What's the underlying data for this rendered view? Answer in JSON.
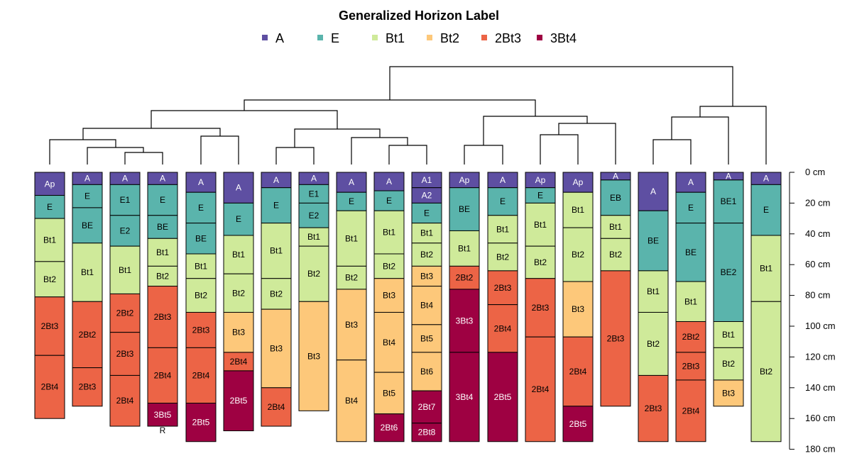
{
  "chart_data": {
    "type": "soil-profile-dendrogram",
    "title": "Generalized Horizon Label",
    "legend": [
      {
        "label": "A",
        "color": "#5E4FA2"
      },
      {
        "label": "E",
        "color": "#5AB4AC"
      },
      {
        "label": "Bt1",
        "color": "#CFEA9A"
      },
      {
        "label": "Bt2",
        "color": "#FDC87A"
      },
      {
        "label": "2Bt3",
        "color": "#EC6446"
      },
      {
        "label": "3Bt4",
        "color": "#9E0142"
      }
    ],
    "depth_axis": {
      "unit": "cm",
      "ticks": [
        {
          "value": 0,
          "label": "0 cm"
        },
        {
          "value": 20,
          "label": "20 cm"
        },
        {
          "value": 40,
          "label": "40 cm"
        },
        {
          "value": 60,
          "label": "60 cm"
        },
        {
          "value": 80,
          "label": "80 cm"
        },
        {
          "value": 100,
          "label": "100 cm"
        },
        {
          "value": 120,
          "label": "120 cm"
        },
        {
          "value": 140,
          "label": "140 cm"
        },
        {
          "value": 160,
          "label": "160 cm"
        },
        {
          "value": 180,
          "label": "180 cm"
        }
      ],
      "range": [
        0,
        180
      ]
    },
    "profiles": [
      {
        "horizons": [
          {
            "name": "Ap",
            "top": 0,
            "bottom": 15,
            "group": "A"
          },
          {
            "name": "E",
            "top": 15,
            "bottom": 30,
            "group": "E"
          },
          {
            "name": "Bt1",
            "top": 30,
            "bottom": 58,
            "group": "Bt1"
          },
          {
            "name": "Bt2",
            "top": 58,
            "bottom": 81,
            "group": "Bt1"
          },
          {
            "name": "2Bt3",
            "top": 81,
            "bottom": 119,
            "group": "2Bt3"
          },
          {
            "name": "2Bt4",
            "top": 119,
            "bottom": 160,
            "group": "2Bt3"
          }
        ]
      },
      {
        "horizons": [
          {
            "name": "A",
            "top": 0,
            "bottom": 8,
            "group": "A"
          },
          {
            "name": "E",
            "top": 8,
            "bottom": 23,
            "group": "E"
          },
          {
            "name": "BE",
            "top": 23,
            "bottom": 46,
            "group": "E"
          },
          {
            "name": "Bt1",
            "top": 46,
            "bottom": 84,
            "group": "Bt1"
          },
          {
            "name": "2Bt2",
            "top": 84,
            "bottom": 127,
            "group": "2Bt3"
          },
          {
            "name": "2Bt3",
            "top": 127,
            "bottom": 152,
            "group": "2Bt3"
          }
        ]
      },
      {
        "horizons": [
          {
            "name": "A",
            "top": 0,
            "bottom": 8,
            "group": "A"
          },
          {
            "name": "E1",
            "top": 8,
            "bottom": 28,
            "group": "E"
          },
          {
            "name": "E2",
            "top": 28,
            "bottom": 48,
            "group": "E"
          },
          {
            "name": "Bt1",
            "top": 48,
            "bottom": 79,
            "group": "Bt1"
          },
          {
            "name": "2Bt2",
            "top": 79,
            "bottom": 104,
            "group": "2Bt3"
          },
          {
            "name": "2Bt3",
            "top": 104,
            "bottom": 132,
            "group": "2Bt3"
          },
          {
            "name": "2Bt4",
            "top": 132,
            "bottom": 165,
            "group": "2Bt3"
          }
        ]
      },
      {
        "horizons": [
          {
            "name": "A",
            "top": 0,
            "bottom": 8,
            "group": "A"
          },
          {
            "name": "E",
            "top": 8,
            "bottom": 28,
            "group": "E"
          },
          {
            "name": "BE",
            "top": 28,
            "bottom": 43,
            "group": "E"
          },
          {
            "name": "Bt1",
            "top": 43,
            "bottom": 61,
            "group": "Bt1"
          },
          {
            "name": "Bt2",
            "top": 61,
            "bottom": 74,
            "group": "Bt1"
          },
          {
            "name": "2Bt3",
            "top": 74,
            "bottom": 114,
            "group": "2Bt3"
          },
          {
            "name": "2Bt4",
            "top": 114,
            "bottom": 150,
            "group": "2Bt3"
          },
          {
            "name": "3Bt5",
            "top": 150,
            "bottom": 165,
            "group": "3Bt4"
          },
          {
            "name": "R",
            "top": 165,
            "bottom": 166,
            "group": "none"
          }
        ]
      },
      {
        "horizons": [
          {
            "name": "A",
            "top": 0,
            "bottom": 13,
            "group": "A"
          },
          {
            "name": "E",
            "top": 13,
            "bottom": 33,
            "group": "E"
          },
          {
            "name": "BE",
            "top": 33,
            "bottom": 53,
            "group": "E"
          },
          {
            "name": "Bt1",
            "top": 53,
            "bottom": 69,
            "group": "Bt1"
          },
          {
            "name": "Bt2",
            "top": 69,
            "bottom": 91,
            "group": "Bt1"
          },
          {
            "name": "2Bt3",
            "top": 91,
            "bottom": 114,
            "group": "2Bt3"
          },
          {
            "name": "2Bt4",
            "top": 114,
            "bottom": 150,
            "group": "2Bt3"
          },
          {
            "name": "2Bt5",
            "top": 150,
            "bottom": 175,
            "group": "3Bt4"
          }
        ]
      },
      {
        "horizons": [
          {
            "name": "A",
            "top": 0,
            "bottom": 20,
            "group": "A"
          },
          {
            "name": "E",
            "top": 20,
            "bottom": 41,
            "group": "E"
          },
          {
            "name": "Bt1",
            "top": 41,
            "bottom": 66,
            "group": "Bt1"
          },
          {
            "name": "Bt2",
            "top": 66,
            "bottom": 91,
            "group": "Bt1"
          },
          {
            "name": "Bt3",
            "top": 91,
            "bottom": 117,
            "group": "Bt2"
          },
          {
            "name": "2Bt4",
            "top": 117,
            "bottom": 129,
            "group": "2Bt3"
          },
          {
            "name": "2Bt5",
            "top": 129,
            "bottom": 168,
            "group": "3Bt4"
          }
        ]
      },
      {
        "horizons": [
          {
            "name": "A",
            "top": 0,
            "bottom": 10,
            "group": "A"
          },
          {
            "name": "E",
            "top": 10,
            "bottom": 33,
            "group": "E"
          },
          {
            "name": "Bt1",
            "top": 33,
            "bottom": 69,
            "group": "Bt1"
          },
          {
            "name": "Bt2",
            "top": 69,
            "bottom": 89,
            "group": "Bt1"
          },
          {
            "name": "Bt3",
            "top": 89,
            "bottom": 140,
            "group": "Bt2"
          },
          {
            "name": "2Bt4",
            "top": 140,
            "bottom": 165,
            "group": "2Bt3"
          }
        ]
      },
      {
        "horizons": [
          {
            "name": "A",
            "top": 0,
            "bottom": 8,
            "group": "A"
          },
          {
            "name": "E1",
            "top": 8,
            "bottom": 20,
            "group": "E"
          },
          {
            "name": "E2",
            "top": 20,
            "bottom": 36,
            "group": "E"
          },
          {
            "name": "Bt1",
            "top": 36,
            "bottom": 48,
            "group": "Bt1"
          },
          {
            "name": "Bt2",
            "top": 48,
            "bottom": 84,
            "group": "Bt1"
          },
          {
            "name": "Bt3",
            "top": 84,
            "bottom": 155,
            "group": "Bt2"
          }
        ]
      },
      {
        "horizons": [
          {
            "name": "A",
            "top": 0,
            "bottom": 13,
            "group": "A"
          },
          {
            "name": "E",
            "top": 13,
            "bottom": 25,
            "group": "E"
          },
          {
            "name": "Bt1",
            "top": 25,
            "bottom": 61,
            "group": "Bt1"
          },
          {
            "name": "Bt2",
            "top": 61,
            "bottom": 76,
            "group": "Bt1"
          },
          {
            "name": "Bt3",
            "top": 76,
            "bottom": 122,
            "group": "Bt2"
          },
          {
            "name": "Bt4",
            "top": 122,
            "bottom": 175,
            "group": "Bt2"
          }
        ]
      },
      {
        "horizons": [
          {
            "name": "A",
            "top": 0,
            "bottom": 12,
            "group": "A"
          },
          {
            "name": "E",
            "top": 12,
            "bottom": 25,
            "group": "E"
          },
          {
            "name": "Bt1",
            "top": 25,
            "bottom": 53,
            "group": "Bt1"
          },
          {
            "name": "Bt2",
            "top": 53,
            "bottom": 69,
            "group": "Bt1"
          },
          {
            "name": "Bt3",
            "top": 69,
            "bottom": 91,
            "group": "Bt2"
          },
          {
            "name": "Bt4",
            "top": 91,
            "bottom": 130,
            "group": "Bt2"
          },
          {
            "name": "Bt5",
            "top": 130,
            "bottom": 157,
            "group": "Bt2"
          },
          {
            "name": "2Bt6",
            "top": 157,
            "bottom": 175,
            "group": "3Bt4"
          }
        ]
      },
      {
        "horizons": [
          {
            "name": "A1",
            "top": 0,
            "bottom": 10,
            "group": "A"
          },
          {
            "name": "A2",
            "top": 10,
            "bottom": 20,
            "group": "A"
          },
          {
            "name": "E",
            "top": 20,
            "bottom": 33,
            "group": "E"
          },
          {
            "name": "Bt1",
            "top": 33,
            "bottom": 46,
            "group": "Bt1"
          },
          {
            "name": "Bt2",
            "top": 46,
            "bottom": 61,
            "group": "Bt1"
          },
          {
            "name": "Bt3",
            "top": 61,
            "bottom": 74,
            "group": "Bt2"
          },
          {
            "name": "Bt4",
            "top": 74,
            "bottom": 99,
            "group": "Bt2"
          },
          {
            "name": "Bt5",
            "top": 99,
            "bottom": 117,
            "group": "Bt2"
          },
          {
            "name": "Bt6",
            "top": 117,
            "bottom": 142,
            "group": "Bt2"
          },
          {
            "name": "2Bt7",
            "top": 142,
            "bottom": 163,
            "group": "3Bt4"
          },
          {
            "name": "2Bt8",
            "top": 163,
            "bottom": 175,
            "group": "3Bt4"
          }
        ]
      },
      {
        "horizons": [
          {
            "name": "Ap",
            "top": 0,
            "bottom": 10,
            "group": "A"
          },
          {
            "name": "BE",
            "top": 10,
            "bottom": 38,
            "group": "E"
          },
          {
            "name": "Bt1",
            "top": 38,
            "bottom": 61,
            "group": "Bt1"
          },
          {
            "name": "2Bt2",
            "top": 61,
            "bottom": 76,
            "group": "2Bt3"
          },
          {
            "name": "3Bt3",
            "top": 76,
            "bottom": 117,
            "group": "3Bt4"
          },
          {
            "name": "3Bt4",
            "top": 117,
            "bottom": 175,
            "group": "3Bt4"
          }
        ]
      },
      {
        "horizons": [
          {
            "name": "A",
            "top": 0,
            "bottom": 10,
            "group": "A"
          },
          {
            "name": "E",
            "top": 10,
            "bottom": 28,
            "group": "E"
          },
          {
            "name": "Bt1",
            "top": 28,
            "bottom": 46,
            "group": "Bt1"
          },
          {
            "name": "Bt2",
            "top": 46,
            "bottom": 64,
            "group": "Bt1"
          },
          {
            "name": "2Bt3",
            "top": 64,
            "bottom": 86,
            "group": "2Bt3"
          },
          {
            "name": "2Bt4",
            "top": 86,
            "bottom": 117,
            "group": "2Bt3"
          },
          {
            "name": "2Bt5",
            "top": 117,
            "bottom": 175,
            "group": "3Bt4"
          }
        ]
      },
      {
        "horizons": [
          {
            "name": "Ap",
            "top": 0,
            "bottom": 10,
            "group": "A"
          },
          {
            "name": "E",
            "top": 10,
            "bottom": 20,
            "group": "E"
          },
          {
            "name": "Bt1",
            "top": 20,
            "bottom": 48,
            "group": "Bt1"
          },
          {
            "name": "Bt2",
            "top": 48,
            "bottom": 69,
            "group": "Bt1"
          },
          {
            "name": "2Bt3",
            "top": 69,
            "bottom": 107,
            "group": "2Bt3"
          },
          {
            "name": "2Bt4",
            "top": 107,
            "bottom": 175,
            "group": "2Bt3"
          }
        ]
      },
      {
        "horizons": [
          {
            "name": "Ap",
            "top": 0,
            "bottom": 13,
            "group": "A"
          },
          {
            "name": "Bt1",
            "top": 13,
            "bottom": 36,
            "group": "Bt1"
          },
          {
            "name": "Bt2",
            "top": 36,
            "bottom": 71,
            "group": "Bt1"
          },
          {
            "name": "Bt3",
            "top": 71,
            "bottom": 107,
            "group": "Bt2"
          },
          {
            "name": "2Bt4",
            "top": 107,
            "bottom": 152,
            "group": "2Bt3"
          },
          {
            "name": "2Bt5",
            "top": 152,
            "bottom": 175,
            "group": "3Bt4"
          }
        ]
      },
      {
        "horizons": [
          {
            "name": "A",
            "top": 0,
            "bottom": 5,
            "group": "A"
          },
          {
            "name": "EB",
            "top": 5,
            "bottom": 28,
            "group": "E"
          },
          {
            "name": "Bt1",
            "top": 28,
            "bottom": 43,
            "group": "Bt1"
          },
          {
            "name": "Bt2",
            "top": 43,
            "bottom": 64,
            "group": "Bt1"
          },
          {
            "name": "2Bt3",
            "top": 64,
            "bottom": 152,
            "group": "2Bt3"
          }
        ]
      },
      {
        "horizons": [
          {
            "name": "A",
            "top": 0,
            "bottom": 25,
            "group": "A"
          },
          {
            "name": "BE",
            "top": 25,
            "bottom": 64,
            "group": "E"
          },
          {
            "name": "Bt1",
            "top": 64,
            "bottom": 91,
            "group": "Bt1"
          },
          {
            "name": "Bt2",
            "top": 91,
            "bottom": 132,
            "group": "Bt1"
          },
          {
            "name": "2Bt3",
            "top": 132,
            "bottom": 175,
            "group": "2Bt3"
          }
        ]
      },
      {
        "horizons": [
          {
            "name": "A",
            "top": 0,
            "bottom": 13,
            "group": "A"
          },
          {
            "name": "E",
            "top": 13,
            "bottom": 33,
            "group": "E"
          },
          {
            "name": "BE",
            "top": 33,
            "bottom": 71,
            "group": "E"
          },
          {
            "name": "Bt1",
            "top": 71,
            "bottom": 97,
            "group": "Bt1"
          },
          {
            "name": "2Bt2",
            "top": 97,
            "bottom": 117,
            "group": "2Bt3"
          },
          {
            "name": "2Bt3",
            "top": 117,
            "bottom": 135,
            "group": "2Bt3"
          },
          {
            "name": "2Bt4",
            "top": 135,
            "bottom": 175,
            "group": "2Bt3"
          }
        ]
      },
      {
        "horizons": [
          {
            "name": "A",
            "top": 0,
            "bottom": 5,
            "group": "A"
          },
          {
            "name": "BE1",
            "top": 5,
            "bottom": 33,
            "group": "E"
          },
          {
            "name": "BE2",
            "top": 33,
            "bottom": 97,
            "group": "E"
          },
          {
            "name": "Bt1",
            "top": 97,
            "bottom": 114,
            "group": "Bt1"
          },
          {
            "name": "Bt2",
            "top": 114,
            "bottom": 135,
            "group": "Bt1"
          },
          {
            "name": "Bt3",
            "top": 135,
            "bottom": 152,
            "group": "Bt2"
          }
        ]
      },
      {
        "horizons": [
          {
            "name": "A",
            "top": 0,
            "bottom": 8,
            "group": "A"
          },
          {
            "name": "E",
            "top": 8,
            "bottom": 41,
            "group": "E"
          },
          {
            "name": "Bt1",
            "top": 41,
            "bottom": 84,
            "group": "Bt1"
          },
          {
            "name": "Bt2",
            "top": 84,
            "bottom": 175,
            "group": "Bt1"
          }
        ]
      }
    ]
  }
}
